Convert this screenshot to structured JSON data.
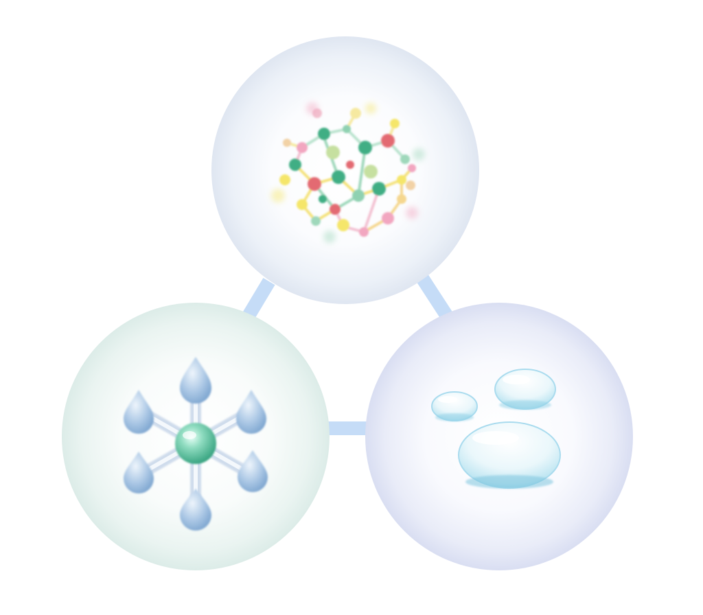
{
  "diagram": {
    "nodes": [
      {
        "id": "molecular-network",
        "icon": "molecular-network-icon",
        "tint": "#e3e9f3"
      },
      {
        "id": "hydrophilic-molecule",
        "icon": "droplet-molecule-icon",
        "tint": "#e2f1ee"
      },
      {
        "id": "water-droplets",
        "icon": "water-droplets-icon",
        "tint": "#e2e6f5"
      }
    ],
    "edges": [
      {
        "from": "molecular-network",
        "to": "hydrophilic-molecule"
      },
      {
        "from": "molecular-network",
        "to": "water-droplets"
      },
      {
        "from": "hydrophilic-molecule",
        "to": "water-droplets"
      }
    ],
    "colors": {
      "connector": "#c5dcf7",
      "network_green": "#3fae84",
      "network_yellow": "#f5e66a",
      "network_red": "#e36a72",
      "network_pink": "#f2a6c0",
      "droplet_blue": "#8fb3d8",
      "core_green": "#5ec4a1",
      "water_blue": "#bfe6f2"
    }
  }
}
